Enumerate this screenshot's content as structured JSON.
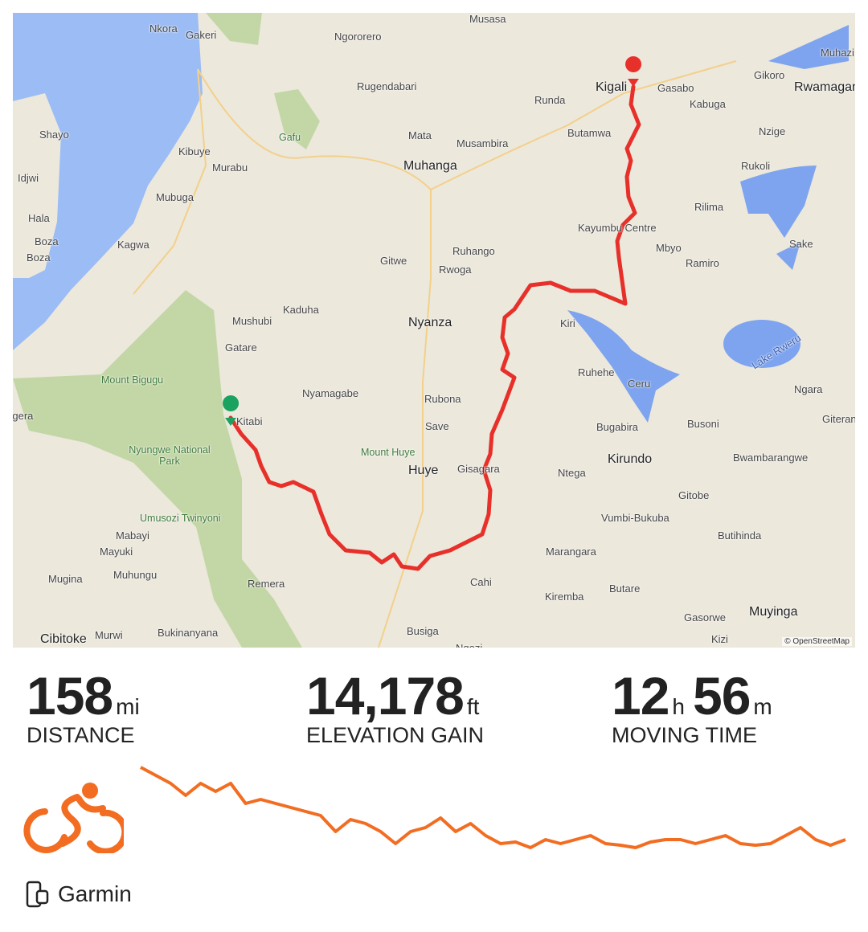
{
  "map": {
    "labels": [
      "Musasa",
      "Nkora",
      "Gakeri",
      "Ngororero",
      "Muhazi",
      "Kigali",
      "Gasabo",
      "Gikoro",
      "Rwamagana",
      "Rugendabari",
      "Runda",
      "Kabuga",
      "Shayo",
      "Gafu",
      "Mata",
      "Butamwa",
      "Nzige",
      "Kibuye",
      "Murabu",
      "Musambira",
      "Muhanga",
      "Rukoli",
      "Idjwi",
      "Mubuga",
      "Rilima",
      "Hala",
      "Kagwa",
      "Kayumbu Centre",
      "Boza",
      "Boza",
      "Ruhango",
      "Gitwe",
      "Mbyo",
      "Ramiro",
      "Sake",
      "Rwoga",
      "Kaduha",
      "Mushubi",
      "Nyanza",
      "Kiri",
      "Lake Rweru",
      "Gatare",
      "Mount Bigugu",
      "Ruhehe",
      "Ceru",
      "Nyamagabe",
      "Rubona",
      "Ngara",
      "Kitabi",
      "Save",
      "Bugabira",
      "Busoni",
      "Giteranyi",
      "Nyungwe National Park",
      "Mount Huye",
      "Huye",
      "Gisagara",
      "Ntega",
      "Kirundo",
      "Bwambarangwe",
      "Gitobe",
      "Umusozi Twinyoni",
      "Vumbi-Bukuba",
      "Mabayi",
      "Butihinda",
      "Mayuki",
      "Marangara",
      "Mugina",
      "Muhungu",
      "Remera",
      "Cahi",
      "Kiremba",
      "Butare",
      "Gasorwe",
      "Muyinga",
      "Cibitoke",
      "Murwi",
      "Bukinanyana",
      "Busiga",
      "Kizi",
      "Ngozi",
      "Ngera"
    ],
    "attribution": "© OpenStreetMap",
    "route_color": "#e8302a",
    "start_marker_color": "#1aa360",
    "end_marker_color": "#e8302a"
  },
  "stats": [
    {
      "value": "158",
      "unit": "mi",
      "label": "DISTANCE"
    },
    {
      "value": "14,178",
      "unit": "ft",
      "label": "ELEVATION GAIN"
    },
    {
      "value": "12",
      "unit": "h",
      "value2": "56",
      "unit2": "m",
      "label": "MOVING TIME"
    }
  ],
  "activity_icon": "cycling-icon",
  "accent_color": "#f26d21",
  "elevation_profile": [
    105,
    95,
    85,
    70,
    85,
    75,
    85,
    60,
    65,
    60,
    55,
    50,
    45,
    25,
    40,
    35,
    25,
    10,
    25,
    30,
    42,
    25,
    35,
    20,
    10,
    12,
    5,
    15,
    10,
    15,
    20,
    10,
    8,
    5,
    12,
    15,
    15,
    10,
    15,
    20,
    10,
    8,
    10,
    20,
    30,
    15,
    8,
    15
  ],
  "device": {
    "icon": "device-icon",
    "label": "Garmin"
  }
}
